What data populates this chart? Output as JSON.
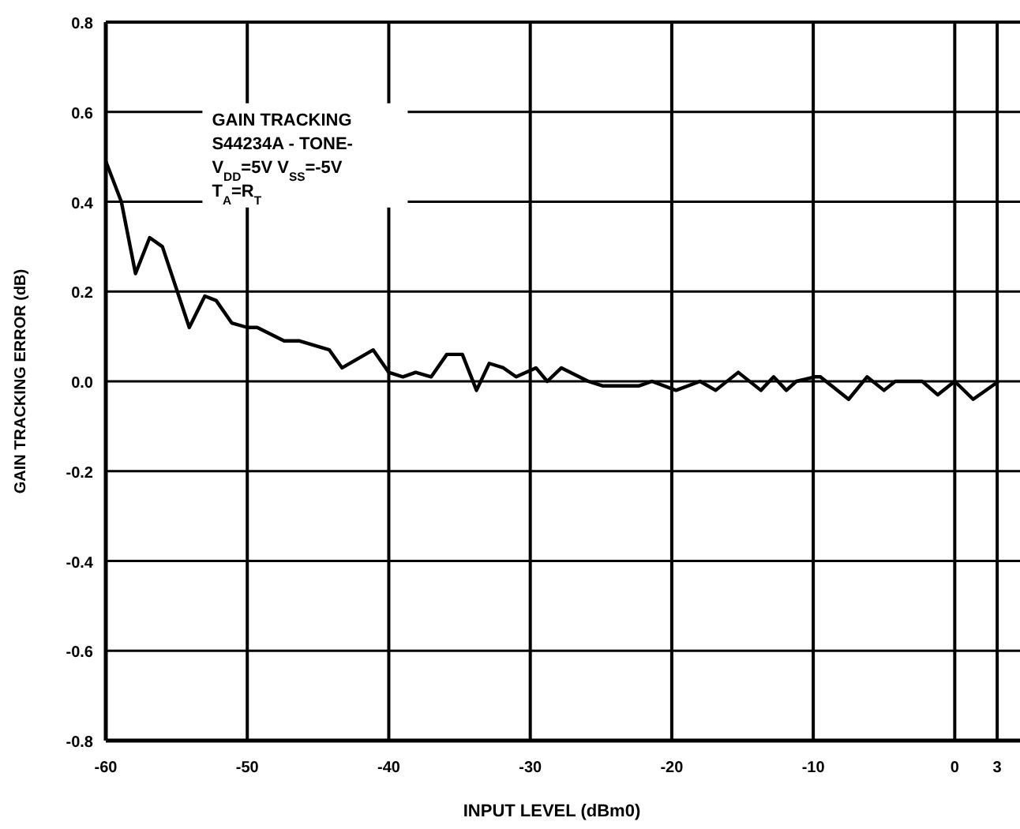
{
  "chart_data": {
    "type": "line",
    "xlabel": "INPUT LEVEL (dBm0)",
    "ylabel": "GAIN TRACKING ERROR (dB)",
    "annotations": [
      "GAIN TRACKING",
      "S44234A - TONE-",
      "V$_{DD}$=5V  V$_{SS}$=-5V",
      "T$_{A}$=R$_{T}$"
    ],
    "xlim": [
      -60,
      4.5
    ],
    "xticks": [
      -60,
      -50,
      -40,
      -30,
      -20,
      -10,
      0,
      3
    ],
    "ylim": [
      -0.8,
      0.8
    ],
    "yticks": [
      {
        "value": -0.8,
        "label": "-0.8"
      },
      {
        "value": -0.6,
        "label": "-0.6"
      },
      {
        "value": -0.4,
        "label": "-0.4"
      },
      {
        "value": -0.2,
        "label": "-0.2"
      },
      {
        "value": 0,
        "label": "0.0"
      },
      {
        "value": 0.2,
        "label": "0.2"
      },
      {
        "value": 0.4,
        "label": "0.4"
      },
      {
        "value": 0.6,
        "label": "0.6"
      },
      {
        "value": 0.8,
        "label": "0.8"
      }
    ],
    "grid": true,
    "marker": "none",
    "line_style": "solid",
    "series": [
      {
        "color": "#000000",
        "x": [
          -60,
          -58.9,
          -57.9,
          -56.9,
          -56.0,
          -54.1,
          -53.0,
          -52.2,
          -51.1,
          -50.0,
          -49.3,
          -47.4,
          -46.3,
          -44.2,
          -43.3,
          -41.1,
          -40.0,
          -39.0,
          -38.1,
          -37.0,
          -35.9,
          -34.8,
          -33.8,
          -32.9,
          -31.9,
          -31.0,
          -29.6,
          -28.8,
          -27.8,
          -25.9,
          -24.9,
          -22.3,
          -21.4,
          -19.7,
          -18.0,
          -16.9,
          -15.3,
          -13.7,
          -12.8,
          -11.9,
          -11.2,
          -9.9,
          -9.5,
          -7.5,
          -6.2,
          -5.0,
          -4.2,
          -2.3,
          -1.2,
          0,
          1.3,
          3.1
        ],
        "values": [
          0.49,
          0.4,
          0.24,
          0.32,
          0.3,
          0.12,
          0.19,
          0.18,
          0.13,
          0.12,
          0.12,
          0.09,
          0.09,
          0.07,
          0.03,
          0.07,
          0.02,
          0.01,
          0.02,
          0.01,
          0.06,
          0.06,
          -0.02,
          0.04,
          0.03,
          0.01,
          0.03,
          0.0,
          0.03,
          0.0,
          -0.01,
          -0.01,
          0.0,
          -0.02,
          0.0,
          -0.02,
          0.02,
          -0.02,
          0.01,
          -0.02,
          0.0,
          0.01,
          0.01,
          -0.04,
          0.01,
          -0.02,
          0.0,
          0.0,
          -0.03,
          0.0,
          -0.04,
          0.0
        ]
      }
    ]
  }
}
